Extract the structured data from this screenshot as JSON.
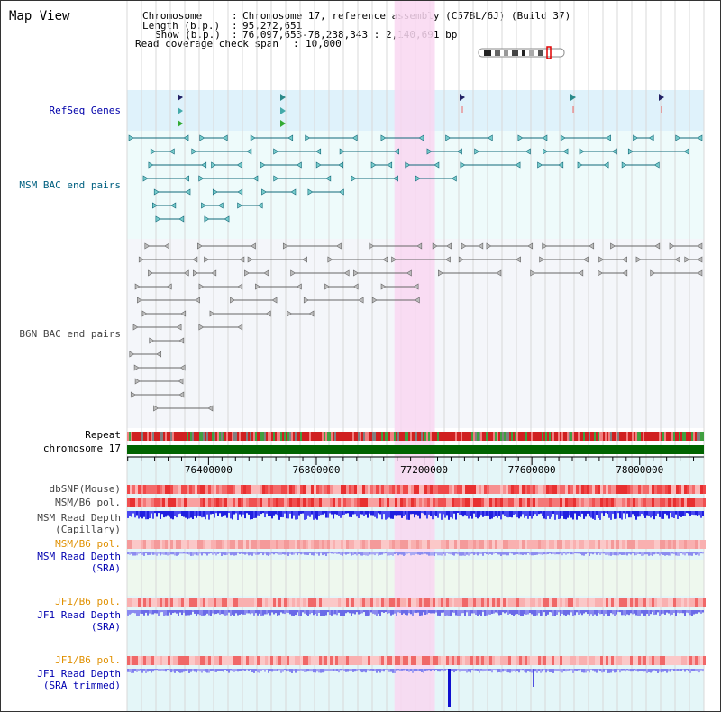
{
  "title": "Map View",
  "info": {
    "chromosome_key": "Chromosome",
    "chromosome_val": "Chromosome 17, reference assembly (C57BL/6J) (Build 37)",
    "length_key": "Length (b.p.)",
    "length_val": "95,272,651",
    "show_key": "Show (b.p.)",
    "show_val": "76,097,653-78,238,343 : 2,140,691 bp",
    "coverage_key": "Read coverage check span",
    "coverage_val": "10,000"
  },
  "labels": {
    "refseq": "RefSeq Genes",
    "msm_bac": "MSM BAC end pairs",
    "b6n_bac": "B6N BAC end pairs",
    "repeat": "Repeat",
    "chromosome": "chromosome 17",
    "dbsnp": "dbSNP(Mouse)",
    "msm_b6_pol": "MSM/B6 pol.",
    "msm_depth_cap_1": "MSM Read Depth",
    "msm_depth_cap_2": "(Capillary)",
    "msm_b6_pol_sra": "MSM/B6 pol.",
    "msm_depth_sra_1": "MSM Read Depth",
    "msm_depth_sra_2": "(SRA)",
    "jf1_b6_pol": "JF1/B6 pol.",
    "jf1_depth_sra_1": "JF1 Read Depth",
    "jf1_depth_sra_2": "(SRA)",
    "jf1_b6_pol_2": "JF1/B6 pol.",
    "jf1_depth_trim_1": "JF1 Read Depth",
    "jf1_depth_trim_2": "(SRA trimmed)"
  },
  "axis": {
    "start": 76097653,
    "end": 78238343,
    "ticks": [
      "76400000",
      "76800000",
      "77200000",
      "77600000",
      "78000000"
    ],
    "tick_values": [
      76400000,
      76800000,
      77200000,
      77600000,
      78000000
    ]
  },
  "highlight": {
    "start": 77090000,
    "end": 77240000
  },
  "colors": {
    "refseq_bg": "#dff2fb",
    "msm_bg": "#eefbfb",
    "b6n_bg": "#f4f6fa",
    "highlight": "#f9d7f1",
    "chrom": "#006400",
    "depth_blue": "#2020e0",
    "depth_light": "#8080f0",
    "pol_red": "#e83030"
  }
}
